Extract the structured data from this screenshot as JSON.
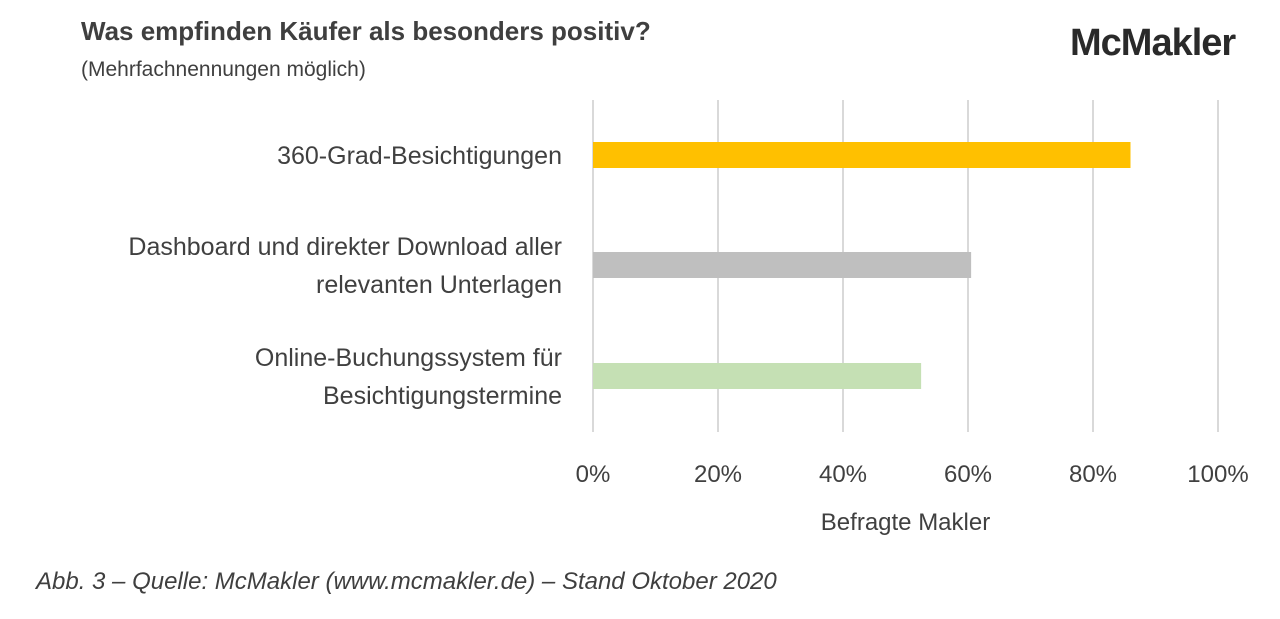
{
  "header": {
    "title": "Was empfinden Käufer als besonders positiv?",
    "subtitle": "(Mehrfachnennungen möglich)",
    "logo_text": "McMakler"
  },
  "caption": "Abb. 3 – Quelle: McMakler (www.mcmakler.de) – Stand Oktober 2020",
  "chart_data": {
    "type": "bar",
    "orientation": "horizontal",
    "categories": [
      [
        "360-Grad-Besichtigungen"
      ],
      [
        "Dashboard und direkter Download aller",
        "relevanten Unterlagen"
      ],
      [
        "Online-Buchungssystem für",
        "Besichtigungstermine"
      ]
    ],
    "values": [
      86,
      60.5,
      52.5
    ],
    "bar_colors": [
      "#ffc000",
      "#bfbfbf",
      "#c5e0b4"
    ],
    "xlabel": "Befragte Makler",
    "ylabel": "",
    "xlim": [
      0,
      100
    ],
    "xticks": [
      "0%",
      "20%",
      "40%",
      "60%",
      "80%",
      "100%"
    ],
    "grid": true,
    "gridline_color": "#d9d9d9"
  }
}
